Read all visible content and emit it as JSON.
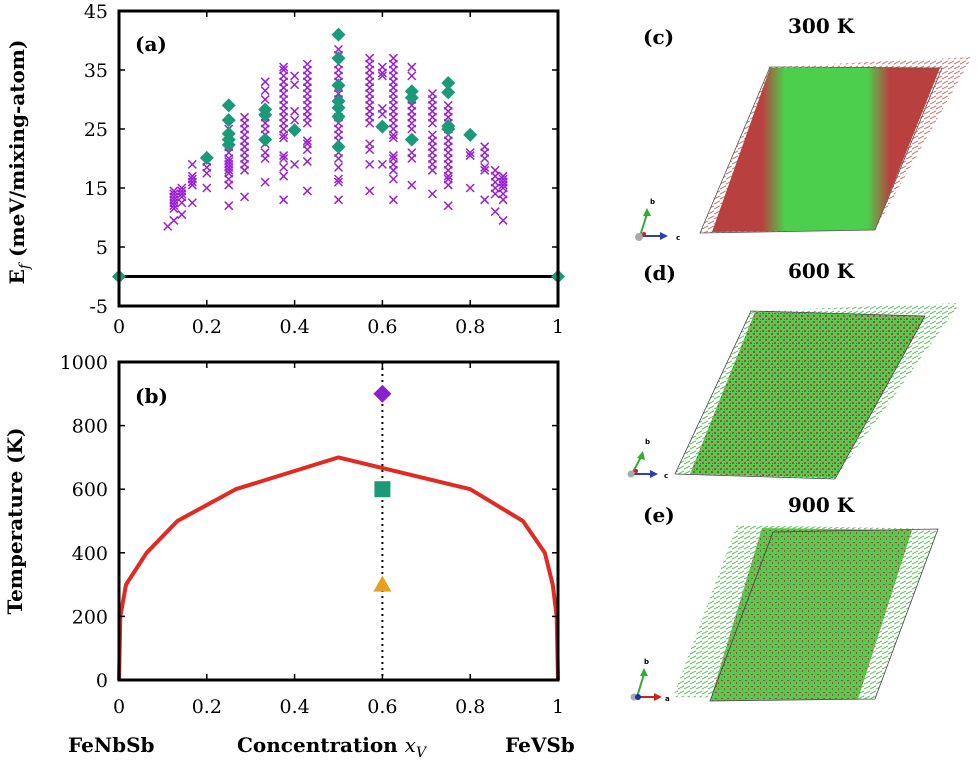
{
  "colors": {
    "ordered": "#9a1fd0",
    "ground_state": "#1a9a78",
    "phase_boundary": "#e02a22",
    "marker_900": "#8b1fd0",
    "marker_600": "#1a9a78",
    "marker_300": "#e8a020",
    "atom_green": "#4ccf4c",
    "atom_red": "#b8413f"
  },
  "chart_data": [
    {
      "id": "a",
      "type": "scatter",
      "panel_label": "(a)",
      "title": "",
      "xlabel": "",
      "ylabel": "E_f (meV/mixing-atom)",
      "ylabel_main": "E",
      "ylabel_sub": "f",
      "ylabel_rest": " (meV/mixing-atom)",
      "xlim": [
        0,
        1
      ],
      "ylim": [
        -5,
        45
      ],
      "xticks": [
        "0",
        "0.2",
        "0.4",
        "0.6",
        "0.8",
        "1"
      ],
      "xtick_values": [
        0,
        0.2,
        0.4,
        0.6,
        0.8,
        1
      ],
      "yticks": [
        "-5",
        "5",
        "15",
        "25",
        "35",
        "45"
      ],
      "ytick_values": [
        -5,
        5,
        15,
        25,
        35,
        45
      ],
      "hline": 0,
      "series": [
        {
          "name": "structures",
          "marker": "x",
          "columns": [
            {
              "x": 0.111,
              "y": [
                8.5
              ]
            },
            {
              "x": 0.125,
              "y": [
                9.5,
                11.5,
                12,
                12.5,
                13,
                13.5,
                14,
                14.5
              ]
            },
            {
              "x": 0.143,
              "y": [
                10.5,
                12.5,
                13.5,
                14,
                14.5,
                15
              ]
            },
            {
              "x": 0.167,
              "y": [
                12.5,
                15.5,
                16,
                16.5,
                17,
                19
              ]
            },
            {
              "x": 0.2,
              "y": [
                15,
                17.5,
                18.5,
                19.5
              ]
            },
            {
              "x": 0.25,
              "y": [
                12,
                15.5,
                16.5,
                17.5,
                18,
                18.5,
                19,
                19.5,
                20,
                21,
                22,
                23,
                24,
                25
              ]
            },
            {
              "x": 0.286,
              "y": [
                13.5,
                18,
                19,
                20,
                21,
                22,
                23,
                24,
                25,
                26,
                27
              ]
            },
            {
              "x": 0.333,
              "y": [
                16,
                20,
                21,
                22.5,
                24,
                25,
                26,
                27,
                30,
                31.5,
                33
              ]
            },
            {
              "x": 0.375,
              "y": [
                13,
                17,
                18.5,
                20,
                20.5,
                23.5,
                24,
                25,
                26,
                27,
                28,
                29,
                30,
                31,
                32,
                33,
                34,
                35,
                35.5
              ]
            },
            {
              "x": 0.4,
              "y": [
                19,
                26.5,
                28,
                32.5,
                34
              ]
            },
            {
              "x": 0.429,
              "y": [
                14.5,
                19.5,
                21.5,
                22.5,
                23,
                26,
                27,
                28,
                29,
                30,
                31,
                32,
                33,
                34,
                35,
                36
              ]
            },
            {
              "x": 0.5,
              "y": [
                13,
                16,
                16.5,
                18.5,
                20,
                21,
                23,
                24,
                25,
                26,
                27,
                28,
                30,
                31,
                32,
                33,
                34,
                35,
                36,
                37.5,
                38.5
              ]
            },
            {
              "x": 0.571,
              "y": [
                14.5,
                19,
                21.5,
                22.5,
                26,
                27,
                28,
                29,
                30,
                31,
                32,
                33,
                34,
                35,
                36,
                37
              ]
            },
            {
              "x": 0.6,
              "y": [
                19,
                27.5,
                28.5,
                34,
                34.5,
                35.5
              ]
            },
            {
              "x": 0.625,
              "y": [
                13,
                16.5,
                18,
                19,
                20,
                20.5,
                23.5,
                24,
                25,
                26,
                27,
                28,
                29,
                30,
                31,
                32,
                33,
                34,
                35,
                36,
                37
              ]
            },
            {
              "x": 0.667,
              "y": [
                15.5,
                20,
                21,
                25,
                26,
                27,
                28,
                29,
                30,
                34,
                35.5
              ]
            },
            {
              "x": 0.714,
              "y": [
                14,
                18,
                19,
                20,
                21,
                22,
                23,
                24,
                26,
                27,
                28,
                29,
                30,
                31
              ]
            },
            {
              "x": 0.75,
              "y": [
                12,
                15.5,
                16.5,
                17,
                18,
                19,
                20,
                21,
                22,
                23,
                24,
                25,
                26,
                27,
                28,
                29
              ]
            },
            {
              "x": 0.8,
              "y": [
                15,
                20.5,
                21
              ]
            },
            {
              "x": 0.833,
              "y": [
                13,
                18,
                18.5,
                20,
                21,
                22
              ]
            },
            {
              "x": 0.857,
              "y": [
                11,
                14,
                15,
                16,
                17,
                18
              ]
            },
            {
              "x": 0.875,
              "y": [
                9.5,
                13,
                14,
                15,
                15.5,
                16,
                16.5,
                17
              ]
            }
          ]
        },
        {
          "name": "ground_states",
          "marker": "diamond",
          "points": [
            [
              0,
              0
            ],
            [
              0.2,
              20.1
            ],
            [
              0.25,
              29
            ],
            [
              0.25,
              26.5
            ],
            [
              0.25,
              24.2
            ],
            [
              0.25,
              23.2
            ],
            [
              0.25,
              22.3
            ],
            [
              0.333,
              28.3
            ],
            [
              0.333,
              27.4
            ],
            [
              0.333,
              23.2
            ],
            [
              0.4,
              24.8
            ],
            [
              0.5,
              41
            ],
            [
              0.5,
              37
            ],
            [
              0.5,
              32.4
            ],
            [
              0.5,
              29.7
            ],
            [
              0.5,
              28.6
            ],
            [
              0.5,
              27.1
            ],
            [
              0.5,
              22
            ],
            [
              0.6,
              25.4
            ],
            [
              0.667,
              31.4
            ],
            [
              0.667,
              30.3
            ],
            [
              0.667,
              23.2
            ],
            [
              0.75,
              32.8
            ],
            [
              0.75,
              31.2
            ],
            [
              0.75,
              25.5
            ],
            [
              0.75,
              25
            ],
            [
              0.8,
              24
            ],
            [
              1,
              0
            ]
          ]
        }
      ]
    },
    {
      "id": "b",
      "type": "line",
      "panel_label": "(b)",
      "title": "",
      "xlabel": "Concentration x_V",
      "xlabel_main": "Concentration ",
      "xlabel_var": "x",
      "xlabel_sub": "V",
      "ylabel": "Temperature (K)",
      "left_endpoint_label": "FeNbSb",
      "right_endpoint_label": "FeVSb",
      "xlim": [
        0,
        1
      ],
      "ylim": [
        0,
        1000
      ],
      "xticks": [
        "0",
        "0.2",
        "0.4",
        "0.6",
        "0.8",
        "1"
      ],
      "xtick_values": [
        0,
        0.2,
        0.4,
        0.6,
        0.8,
        1
      ],
      "yticks": [
        "0",
        "200",
        "400",
        "600",
        "800",
        "1000"
      ],
      "ytick_values": [
        0,
        200,
        400,
        600,
        800,
        1000
      ],
      "series": [
        {
          "name": "phase_boundary",
          "x": [
            0,
            0.003,
            0.016,
            0.063,
            0.133,
            0.266,
            0.5,
            0.8,
            0.92,
            0.97,
            0.988,
            0.997,
            1
          ],
          "y": [
            0,
            200,
            300,
            400,
            500,
            600,
            700,
            600,
            500,
            400,
            300,
            200,
            0
          ]
        }
      ],
      "vline": {
        "x": 0.6,
        "style": "dotted"
      },
      "markers": [
        {
          "name": "900K",
          "shape": "diamond",
          "x": 0.6,
          "y": 900
        },
        {
          "name": "600K",
          "shape": "square",
          "x": 0.6,
          "y": 600
        },
        {
          "name": "300K",
          "shape": "triangle",
          "x": 0.6,
          "y": 300
        }
      ]
    }
  ],
  "snapshots": [
    {
      "label": "(c)",
      "temperature": "300 K",
      "axes": [
        "b",
        "c"
      ],
      "state": "phase-separated"
    },
    {
      "label": "(d)",
      "temperature": "600 K",
      "axes": [
        "b",
        "c"
      ],
      "state": "partially mixed"
    },
    {
      "label": "(e)",
      "temperature": "900 K",
      "axes": [
        "b",
        "a"
      ],
      "state": "random solid solution"
    }
  ]
}
